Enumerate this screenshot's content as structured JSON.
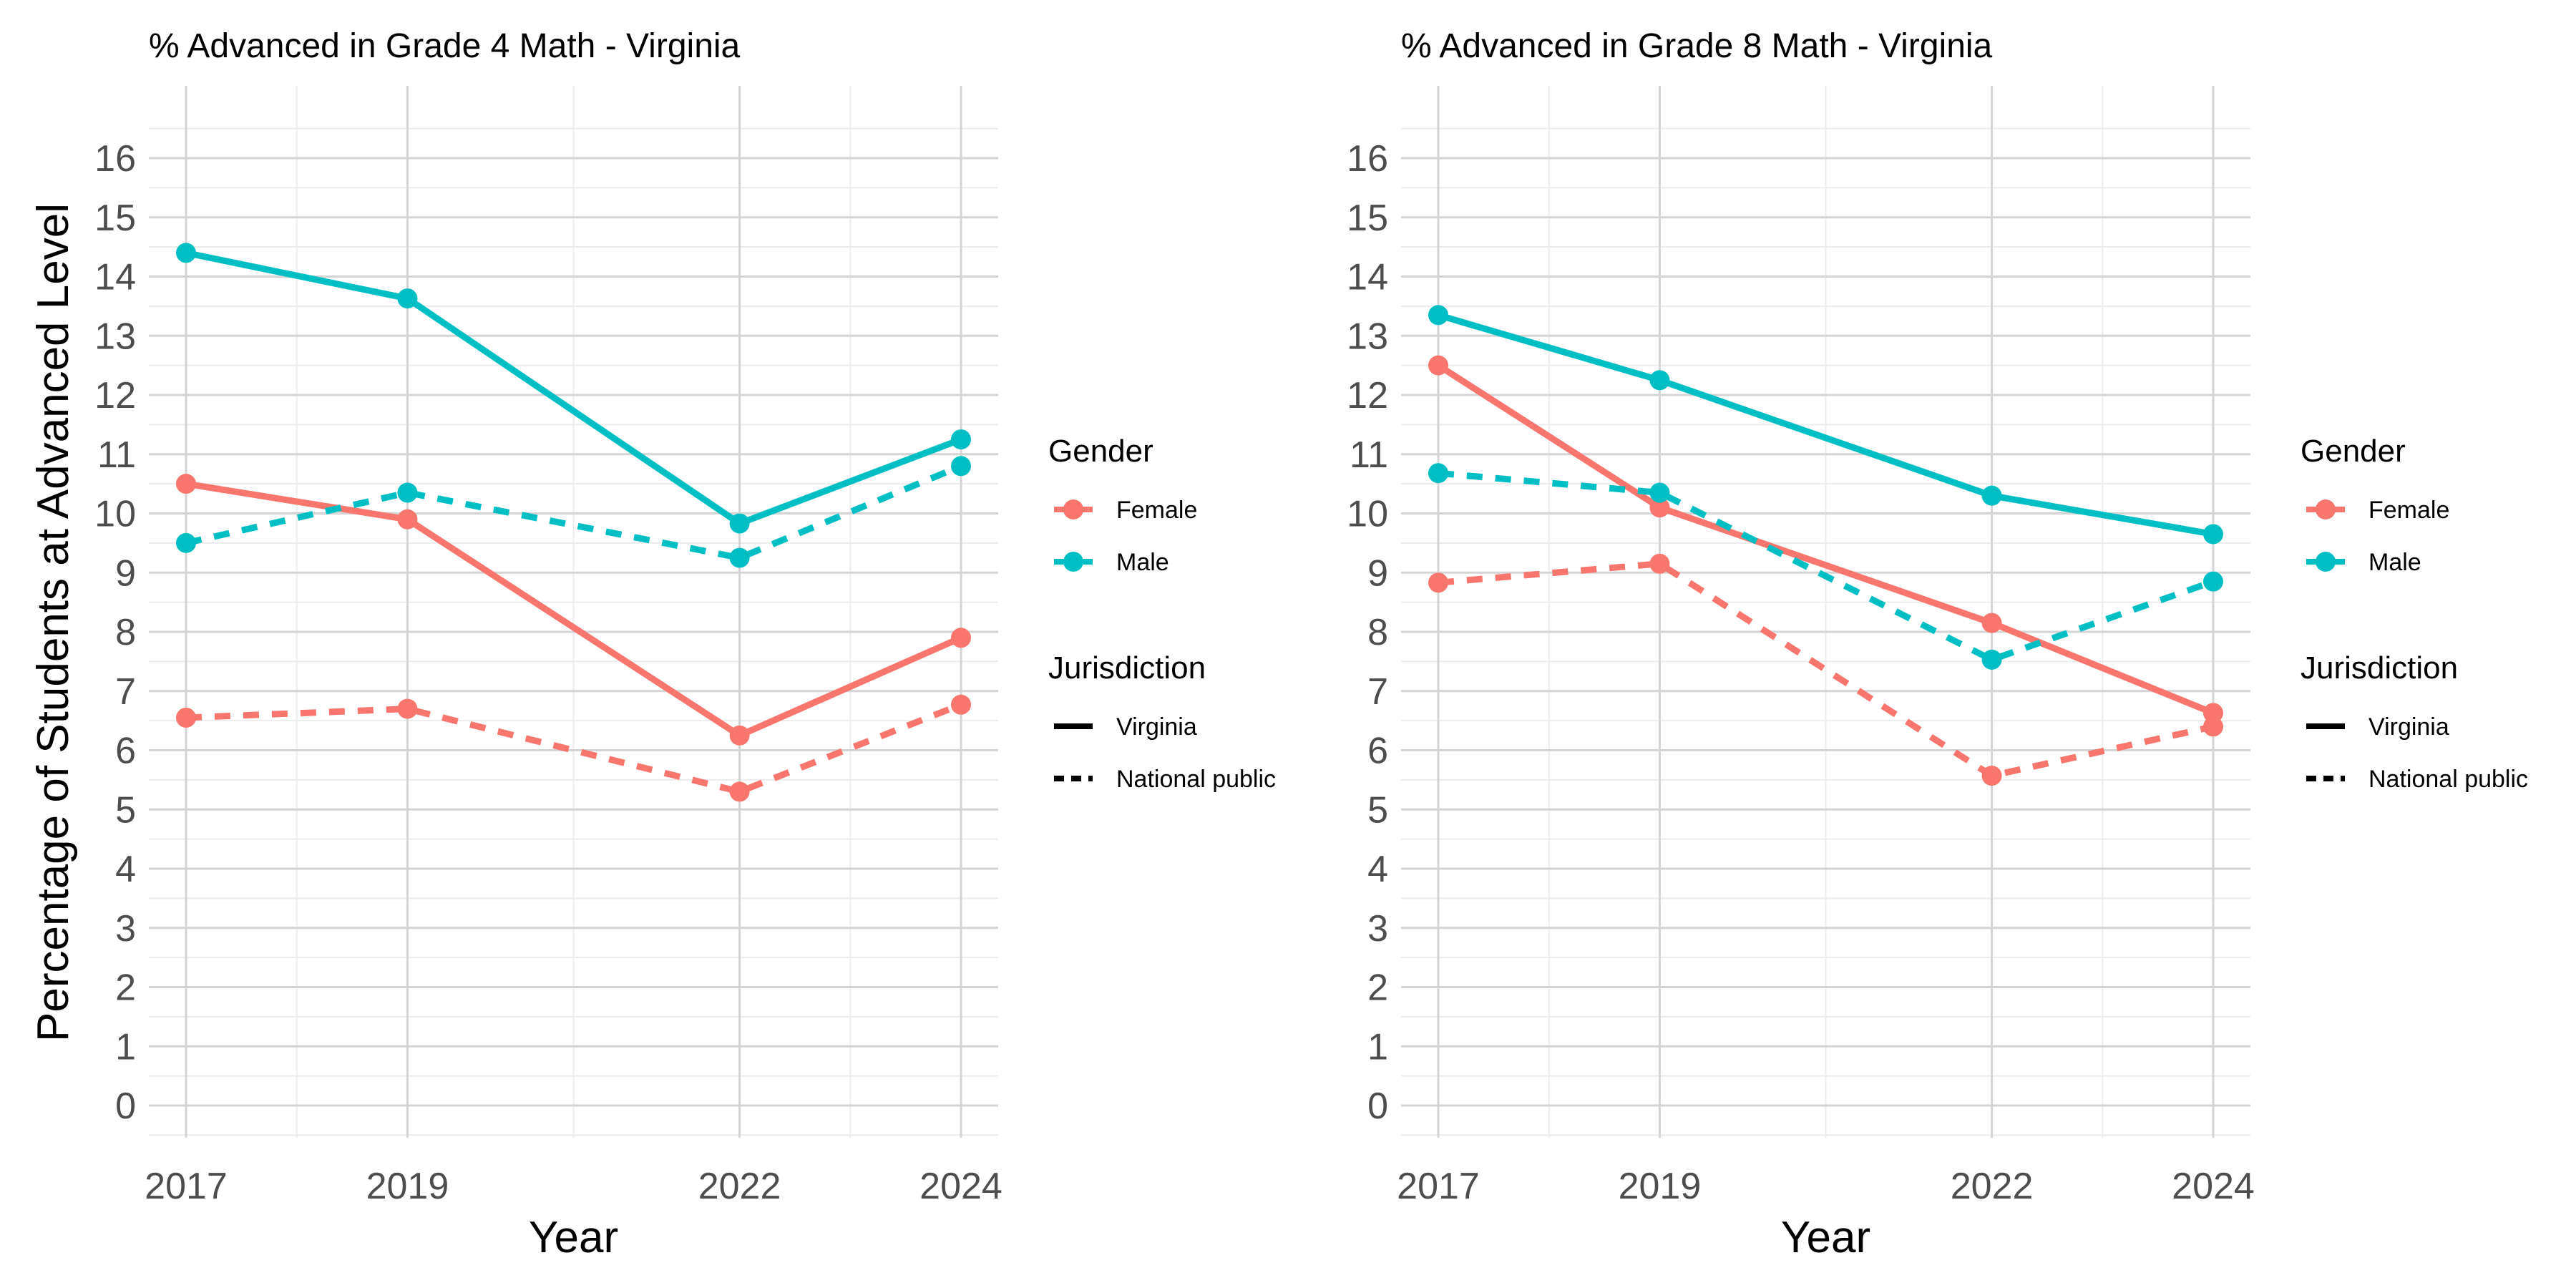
{
  "figure": {
    "ylabel": "Percentage of Students at Advanced Level",
    "colors": {
      "Female": "#F8766D",
      "Male": "#00BFC4",
      "grid_major": "#d4d4d4",
      "grid_minor": "#ececec"
    }
  },
  "chart_data": [
    {
      "type": "line",
      "title": "% Advanced in Grade 4 Math - Virginia",
      "xlabel": "Year",
      "ylabel": "Percentage of Students at Advanced Level",
      "x": [
        2017,
        2019,
        2022,
        2024
      ],
      "ylim": [
        0,
        16
      ],
      "yticks": [
        0,
        1,
        2,
        3,
        4,
        5,
        6,
        7,
        8,
        9,
        10,
        11,
        12,
        13,
        14,
        15,
        16
      ],
      "grid": true,
      "legend_position": "right",
      "series": [
        {
          "name": "Female - Virginia",
          "gender": "Female",
          "jurisdiction": "Virginia",
          "values": [
            10.5,
            9.9,
            6.25,
            7.9
          ]
        },
        {
          "name": "Male - Virginia",
          "gender": "Male",
          "jurisdiction": "Virginia",
          "values": [
            14.4,
            13.63,
            9.83,
            11.25
          ]
        },
        {
          "name": "Female - National public",
          "gender": "Female",
          "jurisdiction": "National public",
          "values": [
            6.55,
            6.7,
            5.3,
            6.77
          ]
        },
        {
          "name": "Male - National public",
          "gender": "Male",
          "jurisdiction": "National public",
          "values": [
            9.5,
            10.35,
            9.25,
            10.8
          ]
        }
      ],
      "legend": {
        "gender_title": "Gender",
        "gender_items": [
          "Female",
          "Male"
        ],
        "jurisdiction_title": "Jurisdiction",
        "jurisdiction_items": [
          "Virginia",
          "National public"
        ]
      }
    },
    {
      "type": "line",
      "title": "% Advanced in Grade 8 Math - Virginia",
      "xlabel": "Year",
      "ylabel": "",
      "x": [
        2017,
        2019,
        2022,
        2024
      ],
      "ylim": [
        0,
        16
      ],
      "yticks": [
        0,
        1,
        2,
        3,
        4,
        5,
        6,
        7,
        8,
        9,
        10,
        11,
        12,
        13,
        14,
        15,
        16
      ],
      "grid": true,
      "legend_position": "right",
      "series": [
        {
          "name": "Female - Virginia",
          "gender": "Female",
          "jurisdiction": "Virginia",
          "values": [
            12.5,
            10.1,
            8.15,
            6.63
          ]
        },
        {
          "name": "Male - Virginia",
          "gender": "Male",
          "jurisdiction": "Virginia",
          "values": [
            13.35,
            12.25,
            10.3,
            9.65
          ]
        },
        {
          "name": "Female - National public",
          "gender": "Female",
          "jurisdiction": "National public",
          "values": [
            8.83,
            9.15,
            5.57,
            6.4
          ]
        },
        {
          "name": "Male - National public",
          "gender": "Male",
          "jurisdiction": "National public",
          "values": [
            10.68,
            10.35,
            7.53,
            8.85
          ]
        }
      ],
      "legend": {
        "gender_title": "Gender",
        "gender_items": [
          "Female",
          "Male"
        ],
        "jurisdiction_title": "Jurisdiction",
        "jurisdiction_items": [
          "Virginia",
          "National public"
        ]
      }
    }
  ]
}
